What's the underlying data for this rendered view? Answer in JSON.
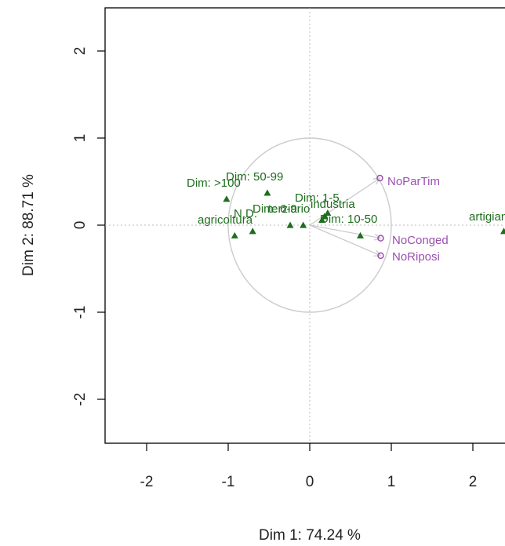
{
  "chart_data": {
    "type": "scatter",
    "title": "",
    "xlabel": "Dim 1: 74.24 %",
    "ylabel": "Dim 2: 88.71 %",
    "xlim": [
      -2.4,
      2.4
    ],
    "ylim": [
      -2.5,
      2.5
    ],
    "xticks": [
      -2,
      -1,
      0,
      1,
      2
    ],
    "yticks": [
      -2,
      -1,
      0,
      1,
      2
    ],
    "colors": {
      "supplementary": "#1e6e1e",
      "active": "#9a4fb0",
      "circle": "#cccccc",
      "reference_line": "#bbbbbb",
      "frame": "#000000"
    },
    "correlation_circle_radius": 1,
    "variable_arrows": [
      {
        "label": "NoParTim",
        "x": 0.86,
        "y": 0.54
      },
      {
        "label": "NoConged",
        "x": 0.87,
        "y": -0.15
      },
      {
        "label": "NoRiposi",
        "x": 0.87,
        "y": -0.35
      }
    ],
    "supplementary_points": [
      {
        "label": "Dim: >100",
        "x": -1.02,
        "y": 0.3
      },
      {
        "label": "Dim: 50-99",
        "x": -0.52,
        "y": 0.37
      },
      {
        "label": "Dim: 1-5",
        "x": 0.22,
        "y": 0.14
      },
      {
        "label": "industria",
        "x": 0.18,
        "y": 0.1
      },
      {
        "label": "terziario",
        "x": -0.08,
        "y": 0.0
      },
      {
        "label": "Dim: 6-9",
        "x": -0.24,
        "y": 0.0
      },
      {
        "label": "Dim: 10-50",
        "x": 0.62,
        "y": -0.12
      },
      {
        "label": "agricoltura",
        "x": -0.92,
        "y": -0.12
      },
      {
        "label": "N.D.",
        "x": -0.7,
        "y": -0.07
      },
      {
        "label": "artigianato",
        "x": 2.38,
        "y": -0.07
      },
      {
        "label": "",
        "x": 0.15,
        "y": 0.06
      }
    ]
  },
  "labels": {
    "l0": "Dim: >100",
    "l1": "Dim: 50-99",
    "l2": "Dim: 1-5",
    "l3": "industria",
    "l4": "Dim: 6-9",
    "l5": "terziario",
    "l6": "Dim: 10-50",
    "l7": "agricoltura",
    "l8": "N.D.",
    "l9": "artigianato",
    "v0": "NoParTim",
    "v1": "NoConged",
    "v2": "NoRiposi"
  }
}
